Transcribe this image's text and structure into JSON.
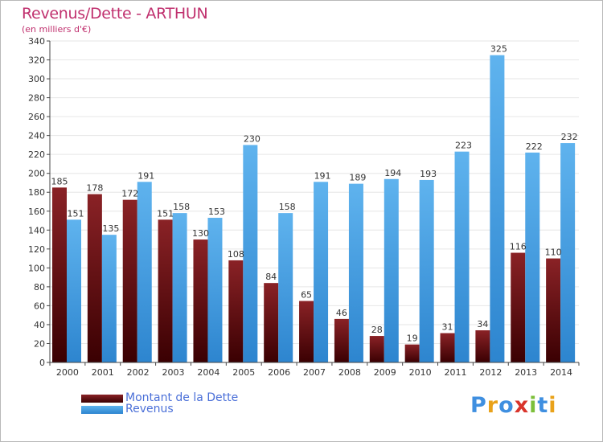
{
  "title": "Revenus/Dette - ARTHUN",
  "subtitle": "(en milliers d'€)",
  "logo_text": "Proxiti",
  "colors": {
    "series1": "#7a1418",
    "series2": "#3f9ee4",
    "title": "#c0306e",
    "legend_text": "#4a6fd8",
    "axis_text": "#333333",
    "grid": "#e6e6e6"
  },
  "chart_data": {
    "type": "bar",
    "title": "Revenus/Dette - ARTHUN",
    "subtitle": "(en milliers d'€)",
    "categories": [
      "2000",
      "2001",
      "2002",
      "2003",
      "2004",
      "2005",
      "2006",
      "2007",
      "2008",
      "2009",
      "2010",
      "2011",
      "2012",
      "2013",
      "2014"
    ],
    "series": [
      {
        "name": "Montant de la Dette",
        "color": "#7a1418",
        "values": [
          185,
          178,
          172,
          151,
          130,
          108,
          84,
          65,
          46,
          28,
          19,
          31,
          34,
          116,
          110
        ]
      },
      {
        "name": "Revenus",
        "color": "#3f9ee4",
        "values": [
          151,
          135,
          191,
          158,
          153,
          230,
          158,
          191,
          189,
          194,
          193,
          223,
          325,
          222,
          232
        ]
      }
    ],
    "ylim": [
      0,
      340
    ],
    "ytick_step": 20,
    "grid": true,
    "legend_position": "bottom-left",
    "data_labels": true
  }
}
